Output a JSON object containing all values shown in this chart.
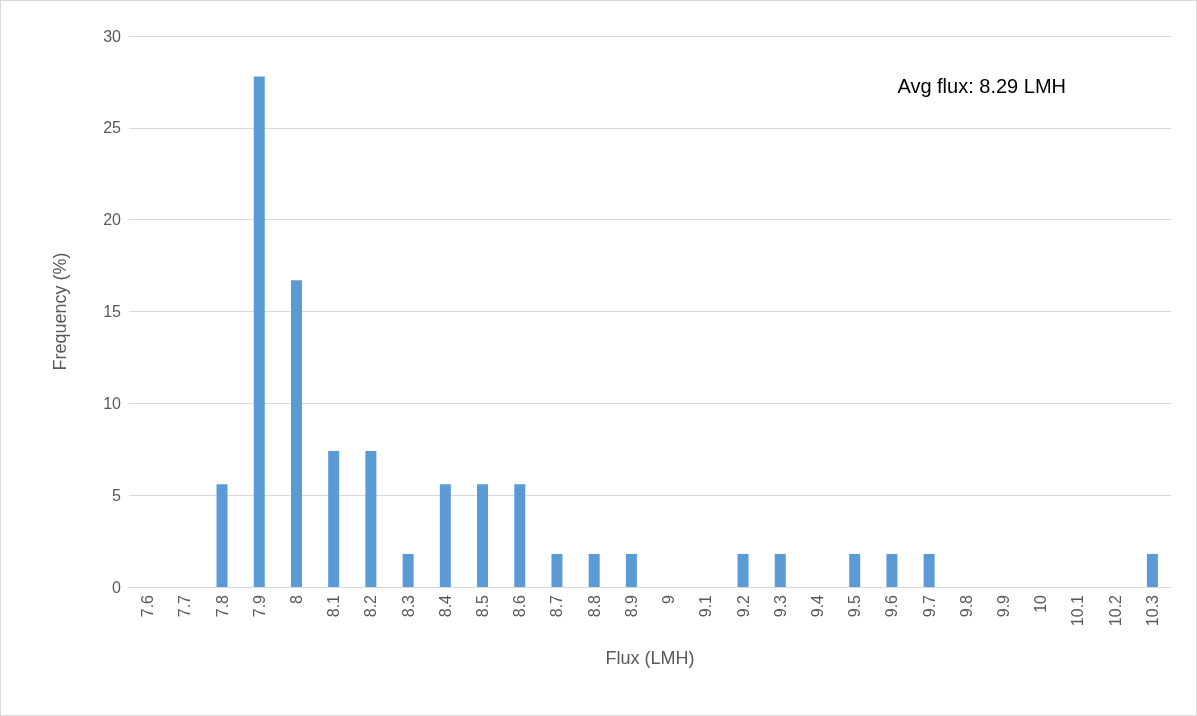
{
  "chart_data": {
    "type": "bar",
    "xlabel": "Flux (LMH)",
    "ylabel": "Frequency (%)",
    "categories": [
      "7.6",
      "7.7",
      "7.8",
      "7.9",
      "8",
      "8.1",
      "8.2",
      "8.3",
      "8.4",
      "8.5",
      "8.6",
      "8.7",
      "8.8",
      "8.9",
      "9",
      "9.1",
      "9.2",
      "9.3",
      "9.4",
      "9.5",
      "9.6",
      "9.7",
      "9.8",
      "9.9",
      "10",
      "10.1",
      "10.2",
      "10.3"
    ],
    "values": [
      0,
      0,
      5.6,
      27.8,
      16.7,
      7.4,
      7.4,
      1.8,
      5.6,
      5.6,
      5.6,
      1.8,
      1.8,
      1.8,
      0,
      0,
      1.8,
      1.8,
      0,
      1.8,
      1.8,
      1.8,
      0,
      0,
      0,
      0,
      0,
      1.8
    ],
    "color": "#5b9bd5",
    "ylim": [
      0,
      30
    ],
    "yticks": [
      0,
      5,
      10,
      15,
      20,
      25,
      30
    ],
    "grid": "y",
    "annotations": [
      "Avg flux: 8.29 LMH"
    ]
  }
}
